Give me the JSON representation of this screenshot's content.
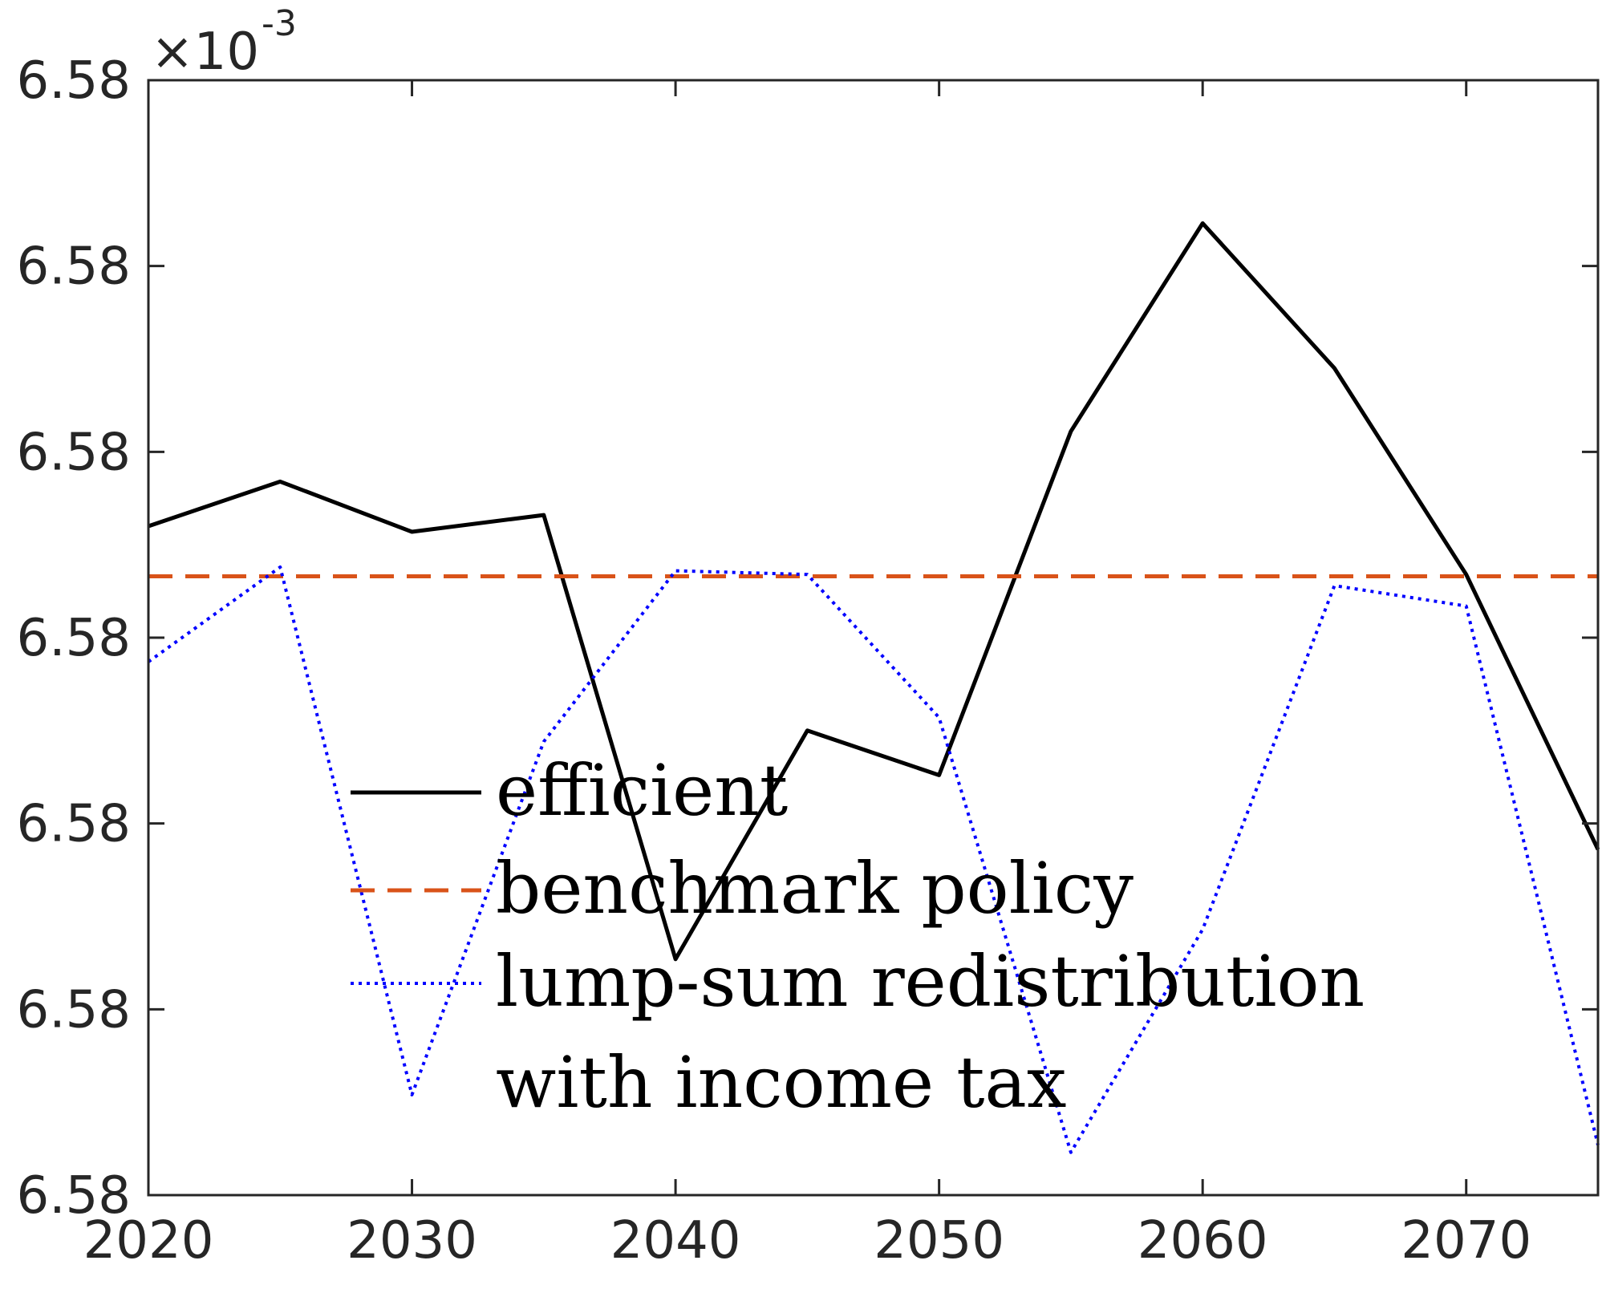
{
  "chart_data": {
    "type": "line",
    "x_ticks": [
      2020,
      2030,
      2040,
      2050,
      2060,
      2070
    ],
    "y_tick_labels": [
      "6.58",
      "6.58",
      "6.58",
      "6.58",
      "6.58",
      "6.58",
      "6.58"
    ],
    "y_exponent": {
      "base": "×10",
      "power": "-3"
    },
    "xlim": [
      2020,
      2075
    ],
    "ylim": [
      0,
      6
    ],
    "grid": false,
    "legend_position": "center",
    "series": [
      {
        "name": "efficient",
        "color": "#000000",
        "style": "solid",
        "x": [
          2020,
          2025,
          2030,
          2035,
          2040,
          2045,
          2050,
          2055,
          2060,
          2065,
          2070,
          2075
        ],
        "y": [
          3.6,
          3.84,
          3.57,
          3.66,
          1.27,
          2.5,
          2.26,
          4.11,
          5.23,
          4.45,
          3.34,
          1.86
        ]
      },
      {
        "name": "benchmark policy",
        "color": "#d95319",
        "style": "dashed",
        "x": [
          2020,
          2075
        ],
        "y": [
          3.33,
          3.33
        ]
      },
      {
        "name": "lump-sum redistribution with income tax",
        "color": "#0000ff",
        "style": "dotted",
        "x": [
          2020,
          2025,
          2030,
          2035,
          2040,
          2045,
          2050,
          2055,
          2060,
          2065,
          2070,
          2075
        ],
        "y": [
          2.87,
          3.38,
          0.54,
          2.44,
          3.36,
          3.34,
          2.57,
          0.23,
          1.43,
          3.28,
          3.17,
          0.27
        ]
      }
    ],
    "legend_entries": [
      {
        "text": "efficient",
        "color": "#000000",
        "style": "solid"
      },
      {
        "text": "benchmark policy",
        "color": "#d95319",
        "style": "dashed"
      },
      {
        "text": "lump-sum redistribution",
        "color": "#0000ff",
        "style": "dotted"
      },
      {
        "text": "with income tax",
        "color": "",
        "style": "none"
      }
    ]
  }
}
